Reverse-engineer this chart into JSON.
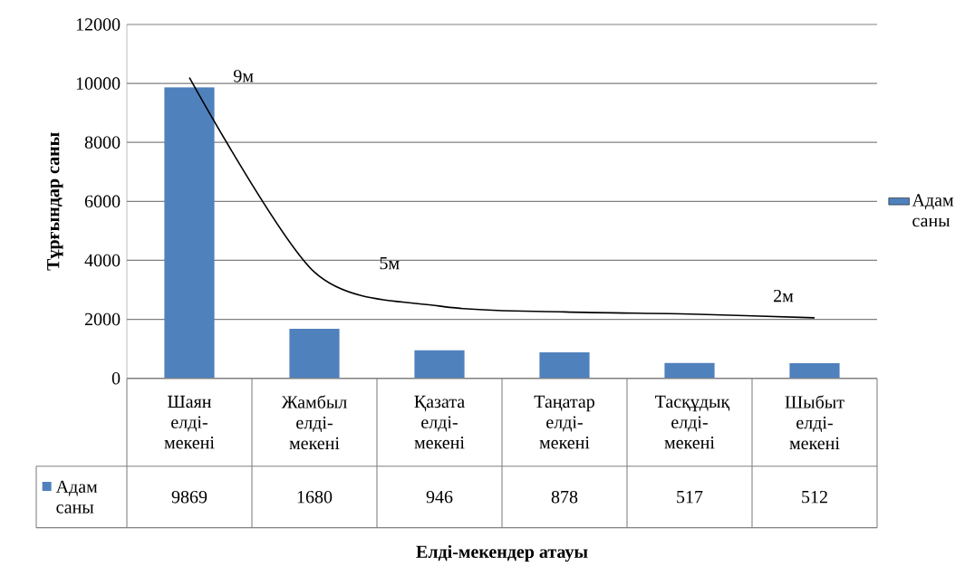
{
  "chart_data": {
    "type": "bar",
    "ylabel": "Тұрғындар саны",
    "categories": [
      "Шаян елді-мекені",
      "Жамбыл елді-мекені",
      "Қазата елді-мекені",
      "Таңатар елді-мекені",
      "Тасқұдық елді-мекені",
      "Шыбыт елді-мекені"
    ],
    "series": [
      {
        "name": "Адам саны",
        "color": "#4f81bd",
        "values": [
          9869,
          1680,
          946,
          878,
          517,
          512
        ],
        "value_labels": [
          "9869",
          "1680",
          "946",
          "878",
          "517",
          "512"
        ]
      },
      {
        "type": "line",
        "color": "#000000",
        "values": [
          10200,
          3600,
          2450,
          2250,
          2180,
          2050
        ]
      }
    ],
    "ylim": [
      0,
      12000
    ],
    "yticks": [
      0,
      2000,
      4000,
      6000,
      8000,
      10000,
      12000
    ],
    "grid": "y",
    "legend": "right",
    "annotations": [
      "9м",
      "5м",
      "2м",
      "**Елді-мекендер атауы**"
    ]
  }
}
